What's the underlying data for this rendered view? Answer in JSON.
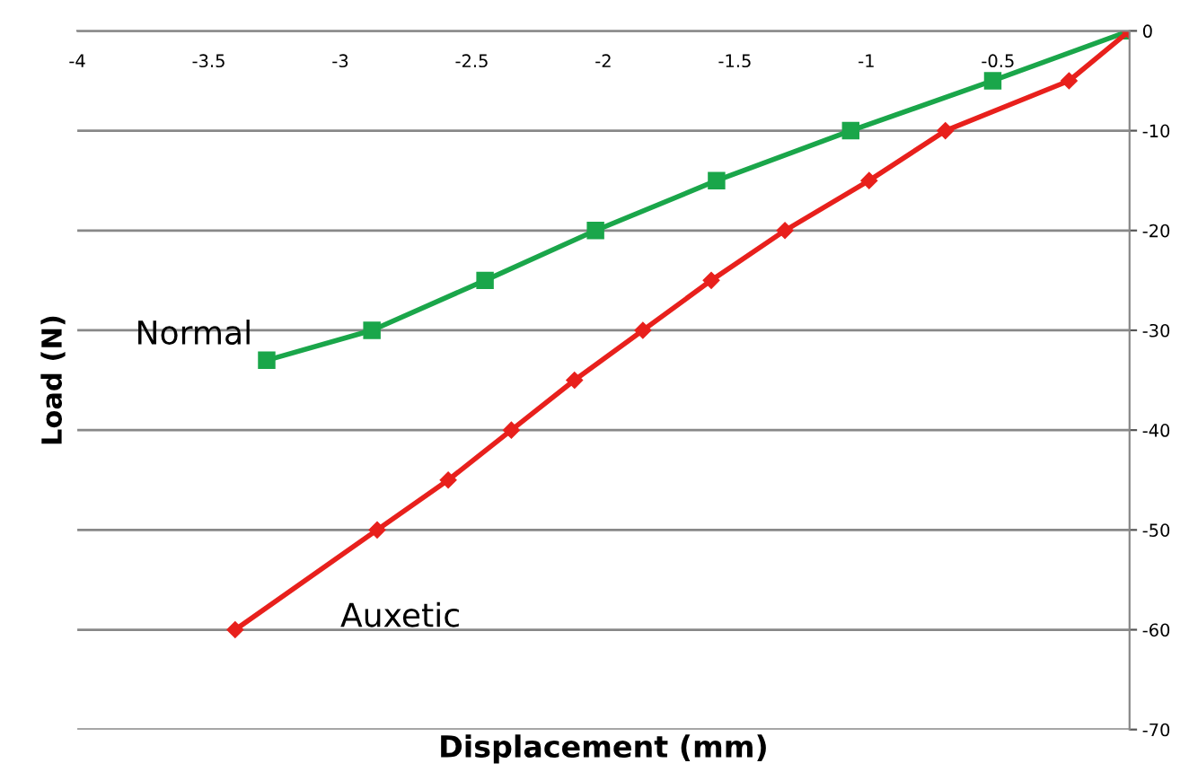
{
  "chart_data": {
    "type": "line",
    "xlabel": "Displacement (mm)",
    "ylabel": "Load (N)",
    "xlim": [
      -4,
      0
    ],
    "xticks": [
      -4,
      -3.5,
      -3,
      -2.5,
      -2,
      -1.5,
      -1,
      -0.5
    ],
    "ylim": [
      -70,
      0
    ],
    "yticks": [
      -70,
      -60,
      -50,
      -40,
      -30,
      -20,
      -10,
      0
    ],
    "grid": "y",
    "legend": false,
    "series": [
      {
        "name": "Normal",
        "color": "#1aa64a",
        "marker": "square",
        "x": [
          -3.28,
          -2.88,
          -2.45,
          -2.03,
          -1.57,
          -1.06,
          -0.52,
          0
        ],
        "values": [
          -33,
          -30,
          -25,
          -20,
          -15,
          -10,
          -5,
          0
        ]
      },
      {
        "name": "Auxetic",
        "color": "#e8201c",
        "marker": "diamond",
        "x": [
          -3.4,
          -2.86,
          -2.59,
          -2.35,
          -2.11,
          -1.85,
          -1.59,
          -1.31,
          -0.99,
          -0.7,
          -0.23,
          0
        ],
        "values": [
          -60,
          -50,
          -45,
          -40,
          -35,
          -30,
          -25,
          -20,
          -15,
          -10,
          -5,
          0
        ]
      }
    ]
  }
}
